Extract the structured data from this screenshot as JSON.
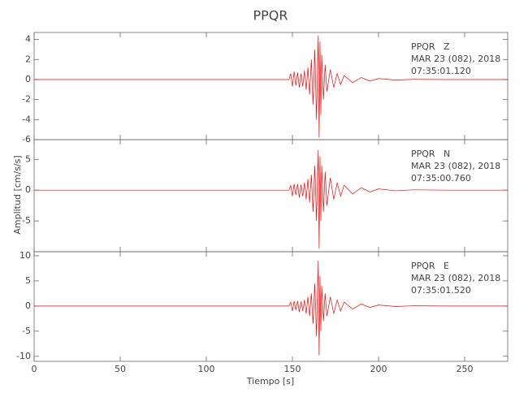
{
  "chart_data": [
    {
      "type": "line",
      "title": "PPQR",
      "annotations": [
        "PPQR   Z",
        "MAR 23 (082), 2018",
        "07:35:01.120"
      ],
      "xlim": [
        0,
        275
      ],
      "ylim": [
        -6,
        4.7
      ],
      "yticks": [
        4,
        2,
        0,
        -2,
        -4,
        -6
      ],
      "series": [
        {
          "color": "#ff0000",
          "x": [
            0,
            148,
            149,
            150,
            151,
            152,
            153,
            154,
            155,
            156,
            157,
            158,
            159,
            160,
            161,
            162,
            163,
            164,
            165,
            165.5,
            166,
            166.5,
            167,
            168,
            169,
            170,
            172,
            174,
            176,
            178,
            180,
            185,
            190,
            195,
            200,
            210,
            220,
            240,
            275
          ],
          "values": [
            0,
            0,
            0.6,
            -0.7,
            0.8,
            -0.6,
            0.7,
            -0.8,
            0.6,
            -0.7,
            0.9,
            -1.0,
            1.2,
            -1.5,
            2.0,
            -2.5,
            3.0,
            -4.0,
            4.4,
            -5.8,
            3.8,
            -3.5,
            2.5,
            -2.0,
            1.5,
            -1.2,
            1.0,
            -0.8,
            0.6,
            -0.5,
            0.4,
            -0.3,
            0.2,
            -0.15,
            0.1,
            -0.05,
            0.02,
            0,
            0
          ]
        }
      ]
    },
    {
      "type": "line",
      "ylabel": "Amplitud [cm/s/s]",
      "annotations": [
        "PPQR   N",
        "MAR 23 (082), 2018",
        "07:35:00.760"
      ],
      "xlim": [
        0,
        275
      ],
      "ylim": [
        -10,
        8.2
      ],
      "yticks": [
        5,
        0,
        -5
      ],
      "series": [
        {
          "color": "#ff0000",
          "x": [
            0,
            148,
            149,
            150,
            151,
            152,
            153,
            154,
            155,
            156,
            157,
            158,
            159,
            160,
            161,
            162,
            163,
            164,
            165,
            165.5,
            166,
            166.5,
            167,
            168,
            169,
            170,
            172,
            174,
            176,
            178,
            180,
            185,
            190,
            195,
            200,
            210,
            220,
            240,
            275
          ],
          "values": [
            0,
            0,
            0.8,
            -1,
            1,
            -0.8,
            1,
            -1.2,
            0.9,
            -1,
            1.2,
            -1.5,
            1.8,
            -2,
            2.5,
            -3.5,
            4,
            -5,
            6.5,
            -9.5,
            5.5,
            -5,
            4,
            -3.5,
            3,
            -2.5,
            2,
            -1.5,
            1.2,
            -1,
            0.8,
            -0.6,
            0.4,
            -0.3,
            0.2,
            -0.1,
            0.05,
            0,
            0
          ]
        }
      ]
    },
    {
      "type": "line",
      "xlabel": "Tiempo [s]",
      "annotations": [
        "PPQR   E",
        "MAR 23 (082), 2018",
        "07:35:01.520"
      ],
      "xlim": [
        0,
        275
      ],
      "xticks": [
        0,
        50,
        100,
        150,
        200,
        250
      ],
      "ylim": [
        -11,
        10.8
      ],
      "yticks": [
        10,
        5,
        0,
        -5,
        -10
      ],
      "series": [
        {
          "color": "#ff0000",
          "x": [
            0,
            148,
            149,
            150,
            151,
            152,
            153,
            154,
            155,
            156,
            157,
            158,
            159,
            160,
            161,
            162,
            163,
            164,
            165,
            165.5,
            166,
            166.5,
            167,
            168,
            169,
            170,
            172,
            174,
            176,
            178,
            180,
            185,
            190,
            195,
            200,
            210,
            220,
            240,
            275
          ],
          "values": [
            0,
            0,
            0.8,
            -1,
            1,
            -0.8,
            1,
            -1.2,
            0.9,
            -1,
            1.2,
            -1.5,
            1.8,
            -2,
            2.5,
            -3.5,
            4.5,
            -6,
            9,
            -9.8,
            6,
            -5,
            4,
            -3,
            2.5,
            -2,
            1.8,
            -1.5,
            1.2,
            -1,
            0.8,
            -0.6,
            0.4,
            -0.3,
            0.2,
            -0.1,
            0.05,
            0,
            0
          ]
        }
      ]
    }
  ]
}
